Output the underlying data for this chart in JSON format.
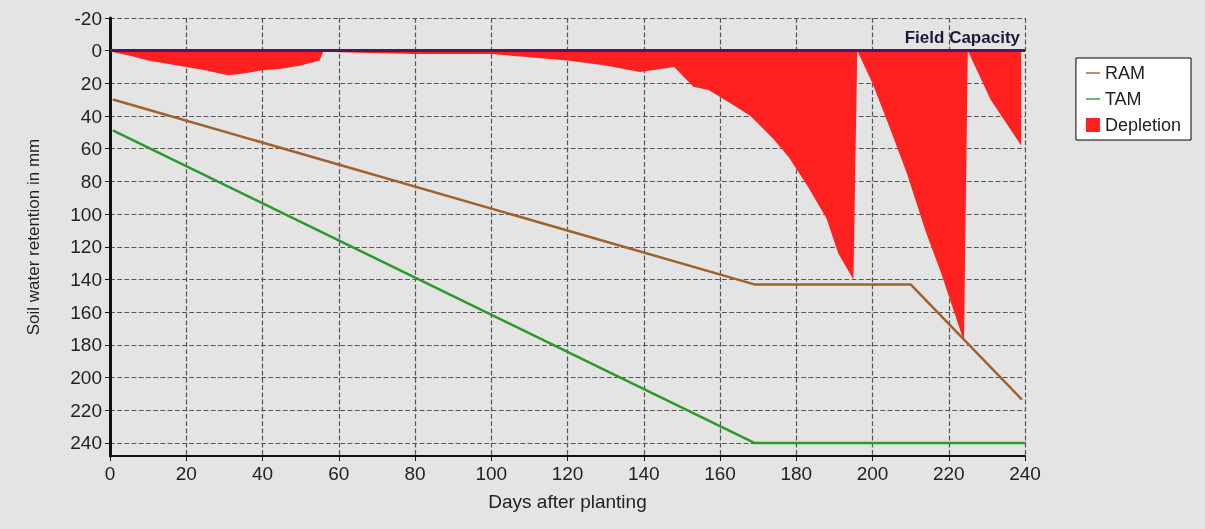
{
  "chart_data": {
    "type": "line",
    "xlabel": "Days after planting",
    "ylabel": "Soil water retention in mm",
    "xlim": [
      0,
      240
    ],
    "xticks": [
      0,
      20,
      40,
      60,
      80,
      100,
      120,
      140,
      160,
      180,
      200,
      220,
      240
    ],
    "ylim": [
      248,
      -20
    ],
    "yticks": [
      -20,
      0,
      20,
      40,
      60,
      80,
      100,
      120,
      140,
      160,
      180,
      200,
      220,
      240
    ],
    "grid": true,
    "legend": "top right",
    "marker": "none",
    "line_style": "solid",
    "ref_lines": [
      {
        "axis": "y",
        "value": 0,
        "label": "Field Capacity",
        "color": "#4b1a5a"
      }
    ],
    "series": [
      {
        "name": "RAM",
        "color": "#a0622d",
        "x": [
          1,
          169,
          210,
          239
        ],
        "values": [
          30,
          143,
          143,
          213
        ]
      },
      {
        "name": "TAM",
        "color": "#2a9a2a",
        "x": [
          1,
          169,
          240
        ],
        "values": [
          49,
          240,
          240
        ]
      },
      {
        "name": "Depletion",
        "type": "area",
        "color": "#ff2020",
        "x": [
          1,
          5,
          10,
          15,
          20,
          25,
          31,
          35,
          40,
          45,
          50,
          55,
          56,
          60,
          80,
          100,
          110,
          120,
          130,
          139,
          148,
          153,
          157,
          164,
          168,
          174,
          178,
          183,
          188,
          191,
          195,
          196,
          200,
          205,
          209,
          214,
          218,
          222,
          224,
          225,
          231,
          239
        ],
        "values": [
          1,
          3,
          6,
          8,
          10,
          12,
          15,
          14,
          12,
          11,
          9,
          6,
          0,
          1,
          2,
          2,
          4,
          6,
          9,
          13,
          10,
          22,
          24,
          34,
          40,
          54,
          65,
          83,
          103,
          124,
          140,
          0,
          20,
          50,
          75,
          111,
          136,
          164,
          178,
          0,
          30,
          58
        ]
      }
    ]
  }
}
